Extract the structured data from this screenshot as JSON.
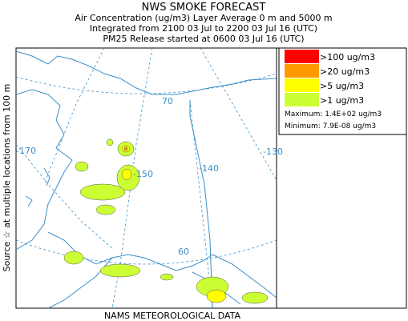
{
  "header": {
    "title": "NWS SMOKE FORECAST",
    "lines": [
      "Air Concentration (ug/m3) Layer Average    0 m and  5000 m",
      "Integrated from 2100 03 Jul to 2200 03 Jul 16 (UTC)",
      "PM25 Release started at 0600 03 Jul 16 (UTC)"
    ]
  },
  "side_label": "Source ☆ at multiple locations    from    100 m",
  "legend": {
    "items": [
      {
        "label": ">100 ug/m3",
        "color": "#ff0000"
      },
      {
        "label": ">20 ug/m3",
        "color": "#ff9900"
      },
      {
        "label": ">5 ug/m3",
        "color": "#ffff00"
      },
      {
        "label": ">1 ug/m3",
        "color": "#ccff33"
      }
    ],
    "maximum": "Maximum: 1.4E+02 ug/m3",
    "minimum": "Minimum: 7.9E-08 ug/m3"
  },
  "map": {
    "labels": [
      "-170",
      "-150",
      "-140",
      "-130",
      "70",
      "60"
    ]
  },
  "footer": "NAMS METEOROLOGICAL DATA"
}
